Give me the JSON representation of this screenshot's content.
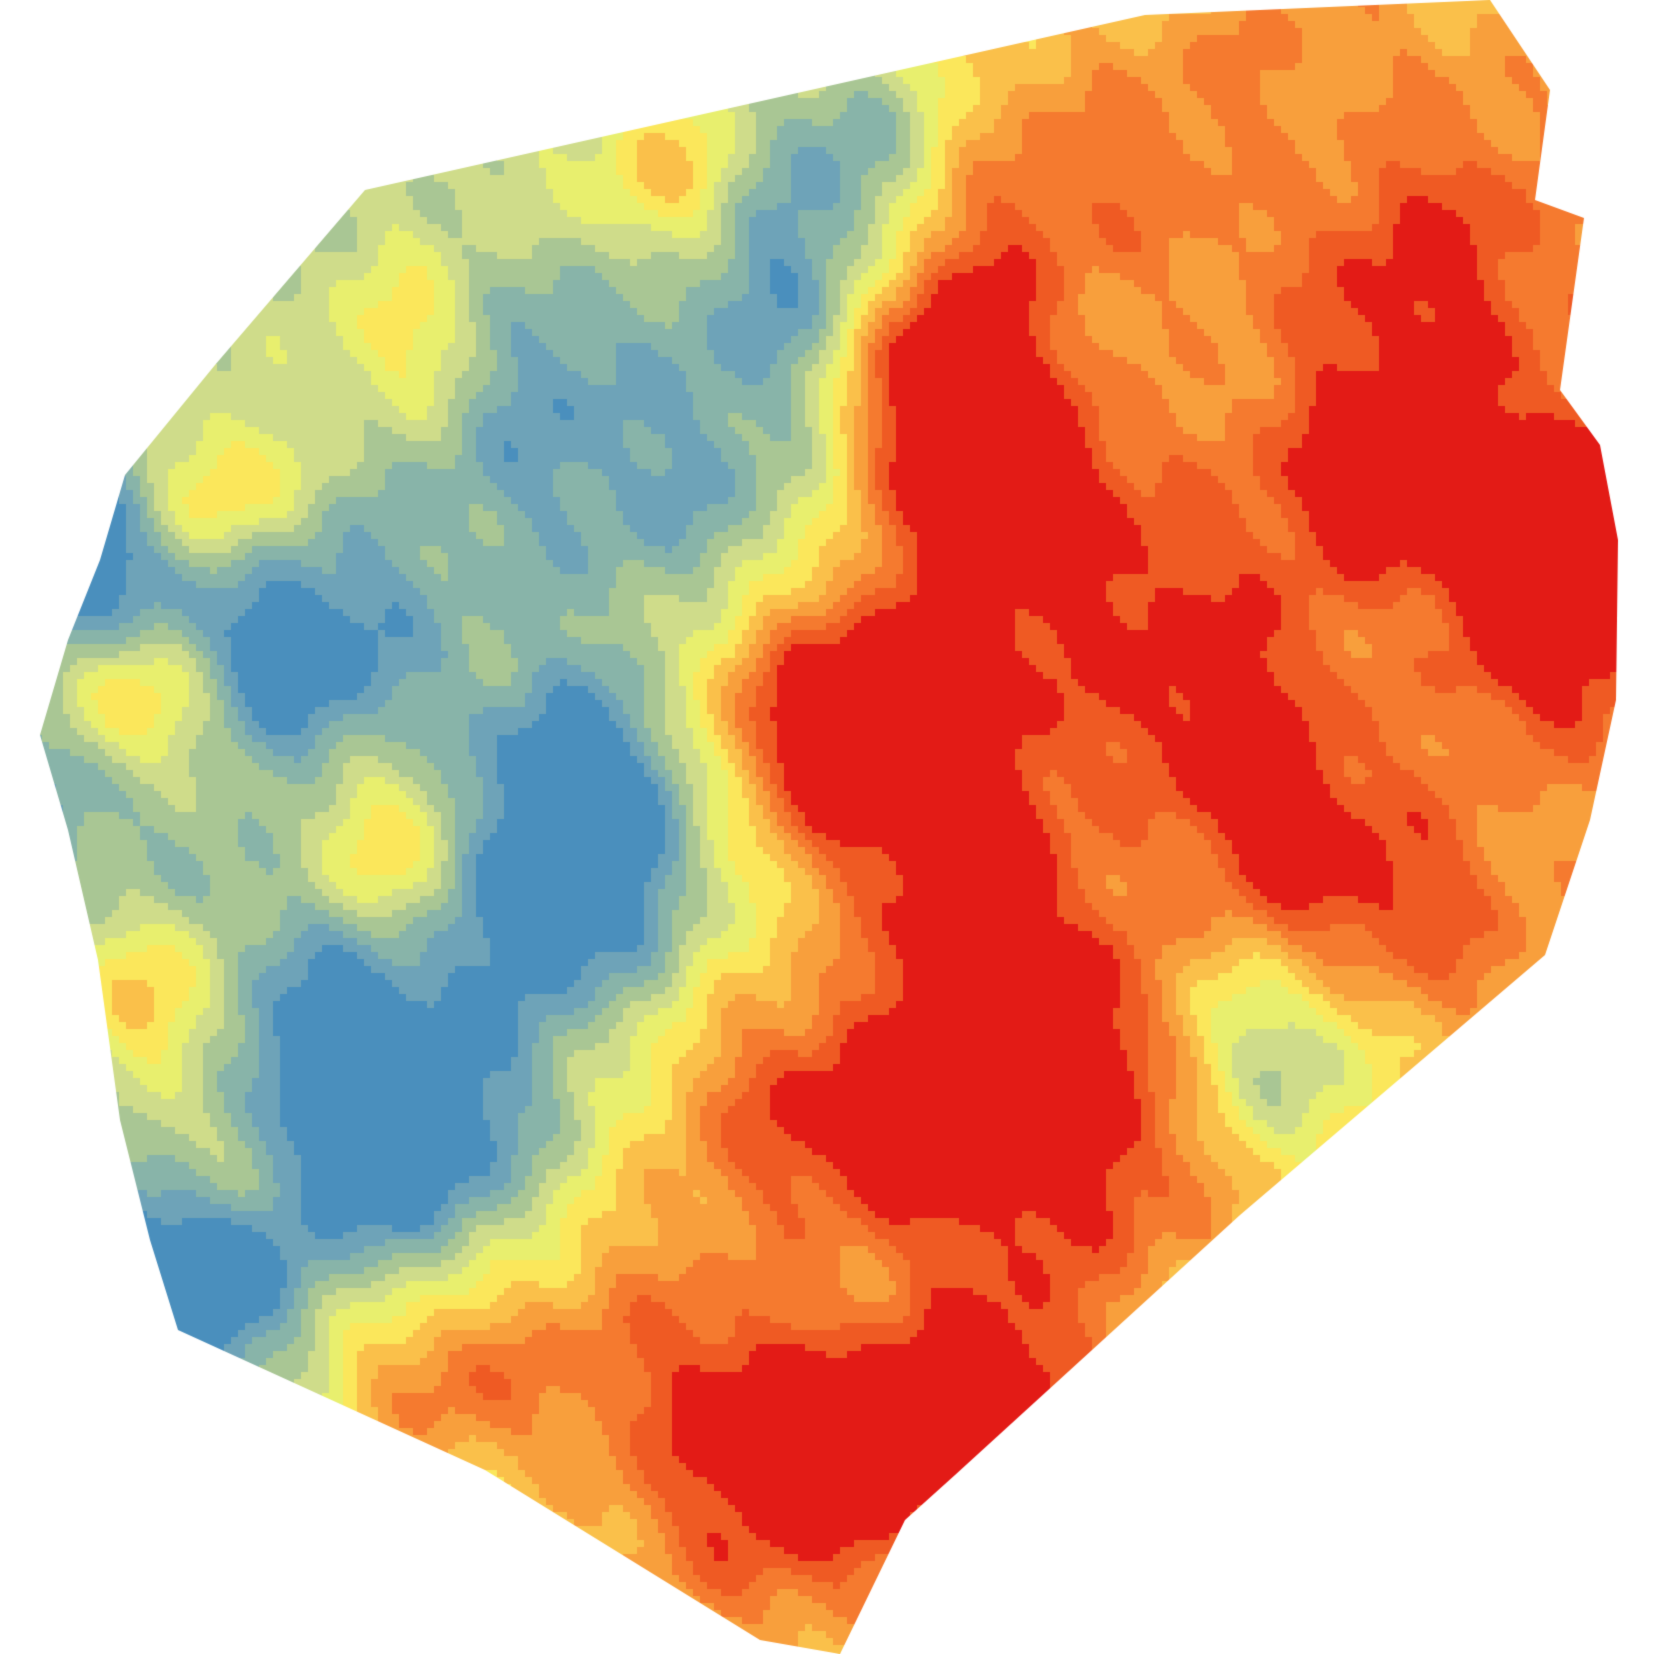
{
  "map": {
    "type": "filled-contour-heatmap",
    "legend": "none",
    "axes": "none",
    "background_color": "#ffffff",
    "color_classes": [
      "#4a8fbd",
      "#6ea3b8",
      "#88b4a9",
      "#a9c694",
      "#cfdc8a",
      "#e8ef6e",
      "#fbe75b",
      "#fac04a",
      "#f89f3c",
      "#f57a2f",
      "#ef5a23",
      "#e31b16"
    ]
  }
}
